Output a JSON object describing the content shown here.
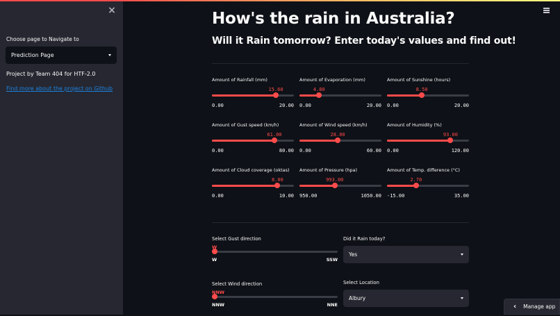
{
  "sidebar": {
    "close_icon": "×",
    "nav_label": "Choose page to Navigate to",
    "nav_selected": "Prediction Page",
    "credit": "Project by Team 404 for HTF-2.0",
    "github_link": "Find more about the project on Github"
  },
  "header": {
    "title": "How's the rain in Australia?",
    "subtitle": "Will it Rain tomorrow? Enter today's values and find out!"
  },
  "sliders": [
    {
      "label": "Amount of Rainfall (mm)",
      "value": "15.60",
      "min": "0.00",
      "max": "20.00",
      "pct": 78
    },
    {
      "label": "Amount of Evaporation (mm)",
      "value": "4.80",
      "min": "0.00",
      "max": "20.00",
      "pct": 24
    },
    {
      "label": "Amount of Sunshine (hours)",
      "value": "8.50",
      "min": "0.00",
      "max": "20.00",
      "pct": 42.5
    },
    {
      "label": "Amount of Gust speed (km/h)",
      "value": "61.00",
      "min": "0.00",
      "max": "80.00",
      "pct": 76.25
    },
    {
      "label": "Amount of Wind speed (km/h)",
      "value": "28.00",
      "min": "0.00",
      "max": "60.00",
      "pct": 46.7
    },
    {
      "label": "Amount of Humidity (%)",
      "value": "93.00",
      "min": "0.00",
      "max": "120.00",
      "pct": 77.5
    },
    {
      "label": "Amount of Cloud coverage (oktas)",
      "value": "8.00",
      "min": "0.00",
      "max": "10.00",
      "pct": 80
    },
    {
      "label": "Amount of Pressure (hpa)",
      "value": "993.00",
      "min": "950.00",
      "max": "1050.00",
      "pct": 43
    },
    {
      "label": "Amount of Temp. difference (°C)",
      "value": "2.70",
      "min": "-15.00",
      "max": "35.00",
      "pct": 35.4
    }
  ],
  "gust_direction": {
    "label": "Select Gust direction",
    "value": "W",
    "min": "W",
    "max": "SSW"
  },
  "wind_direction": {
    "label": "Select Wind direction",
    "value": "NNW",
    "min": "NNW",
    "max": "NNE"
  },
  "rain_today": {
    "label": "Did it Rain today?",
    "value": "Yes"
  },
  "location": {
    "label": "Select Location",
    "value": "Albury"
  },
  "manage_app": {
    "label": "Manage app",
    "icon": "chevron-left"
  },
  "colors": {
    "accent": "#ff4b4b",
    "background": "#0e1117",
    "sidebar": "#262730",
    "link": "#1c83e1"
  }
}
